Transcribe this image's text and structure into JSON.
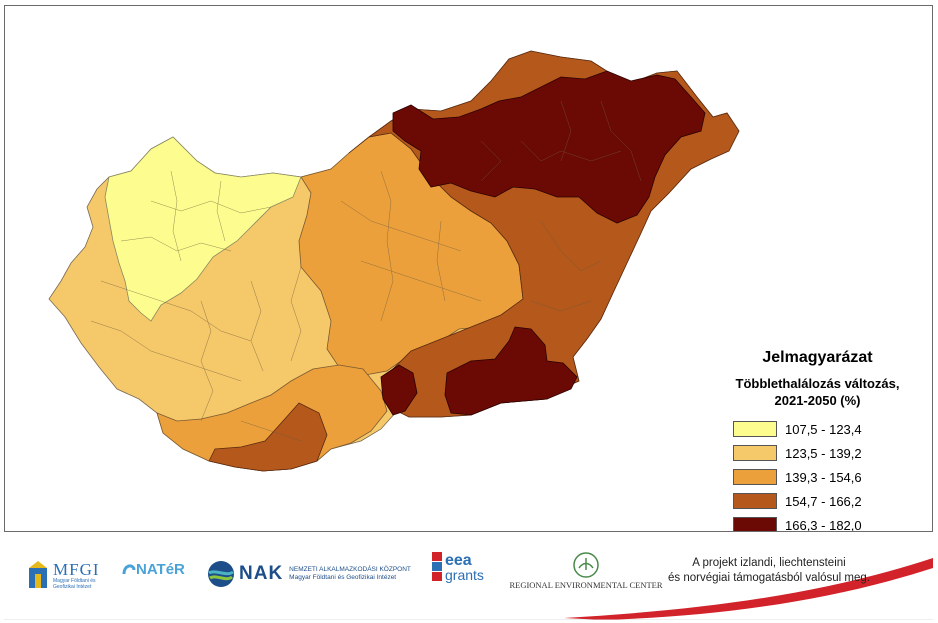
{
  "legend": {
    "title": "Jelmagyarázat",
    "subtitle_line1": "Többlethalálozás változás,",
    "subtitle_line2": "2021-2050 (%)",
    "classes": [
      {
        "label": "107,5 - 123,4",
        "color": "#fdfd8f"
      },
      {
        "label": "123,5 - 139,2",
        "color": "#f5c86a"
      },
      {
        "label": "139,3 - 154,6",
        "color": "#eba03c"
      },
      {
        "label": "154,7 - 166,2",
        "color": "#b4581c"
      },
      {
        "label": "166,3 - 182,0",
        "color": "#6b0a05"
      }
    ]
  },
  "footer": {
    "logos": {
      "mfgi": "MFGI",
      "mfgi_sub1": "Magyar Földtani és",
      "mfgi_sub2": "Geofizikai Intézet",
      "nater": "NATéR",
      "nak": "NAK",
      "nak_sub1": "NEMZETI ALKALMAZKODÁSI KÖZPONT",
      "nak_sub2": "Magyar Földtani és Geofizikai Intézet",
      "eea1": "eea",
      "eea2": "grants",
      "rec": "REGIONAL ENVIRONMENTAL CENTER"
    },
    "note_line1": "A projekt izlandi, liechtensteini",
    "note_line2": "és norvégiai támogatásból valósul meg."
  }
}
